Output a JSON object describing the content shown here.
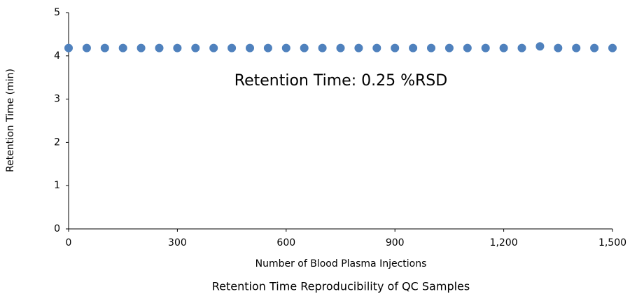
{
  "chart_data": {
    "type": "scatter",
    "title": "Retention Time Reproducibility of QC Samples",
    "x_label": "Number of Blood Plasma Injections",
    "y_label": "Retention Time (min)",
    "annotation": "Retention Time: 0.25 %RSD",
    "series": [
      {
        "color": "#4f81bd",
        "x": [
          0,
          50,
          100,
          150,
          200,
          250,
          300,
          350,
          400,
          450,
          500,
          550,
          600,
          650,
          700,
          750,
          800,
          850,
          900,
          950,
          1000,
          1050,
          1100,
          1150,
          1200,
          1250,
          1300,
          1350,
          1400,
          1450,
          1500
        ],
        "values": [
          4.18,
          4.18,
          4.18,
          4.18,
          4.18,
          4.18,
          4.18,
          4.18,
          4.18,
          4.18,
          4.18,
          4.18,
          4.18,
          4.18,
          4.18,
          4.18,
          4.18,
          4.18,
          4.18,
          4.18,
          4.18,
          4.18,
          4.18,
          4.18,
          4.18,
          4.18,
          4.22,
          4.18,
          4.18,
          4.18,
          4.18
        ]
      }
    ],
    "xlim": [
      0,
      1500
    ],
    "xticks": [
      0,
      300,
      600,
      900,
      {
        "value": 1200,
        "label": "1,200"
      },
      {
        "value": 1500,
        "label": "1,500"
      }
    ],
    "ylim": [
      0,
      5
    ],
    "yticks": [
      0,
      1,
      2,
      3,
      4,
      5
    ],
    "grid": false
  }
}
